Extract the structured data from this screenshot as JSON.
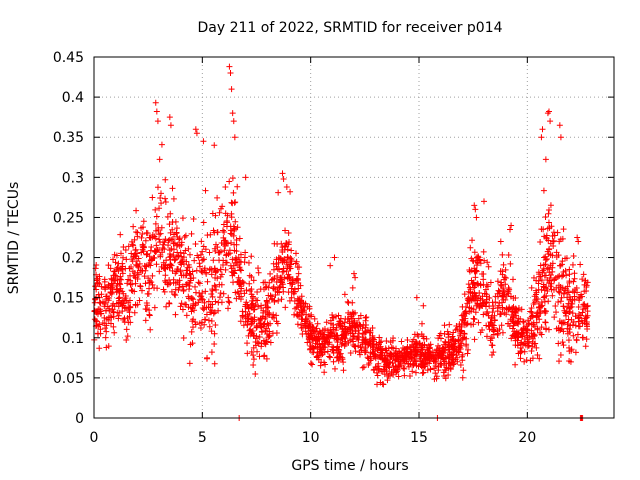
{
  "chart_data": {
    "type": "scatter",
    "title": "Day 211 of 2022, SRMTID for receiver p014",
    "xlabel": "GPS time / hours",
    "ylabel": "SRMTID / TECUs",
    "xlim": [
      0,
      24
    ],
    "ylim": [
      0,
      0.45
    ],
    "xticks": [
      0,
      5,
      10,
      15,
      20
    ],
    "yticks": [
      0,
      0.05,
      0.1,
      0.15,
      0.2,
      0.25,
      0.3,
      0.35,
      0.4,
      0.45
    ],
    "xtick_labels": [
      "0",
      "5",
      "10",
      "15",
      "20"
    ],
    "ytick_labels": [
      "0",
      "0.05",
      "0.1",
      "0.15",
      "0.2",
      "0.25",
      "0.3",
      "0.35",
      "0.4",
      "0.45"
    ],
    "grid": true,
    "marker": "+",
    "series": [
      {
        "name": "SRMTID",
        "color": "#ff0000",
        "trend": [
          [
            0.0,
            0.15
          ],
          [
            0.5,
            0.13
          ],
          [
            1.0,
            0.17
          ],
          [
            1.5,
            0.15
          ],
          [
            2.0,
            0.19
          ],
          [
            2.5,
            0.18
          ],
          [
            3.0,
            0.23
          ],
          [
            3.5,
            0.2
          ],
          [
            4.0,
            0.19
          ],
          [
            4.5,
            0.15
          ],
          [
            5.0,
            0.17
          ],
          [
            5.5,
            0.16
          ],
          [
            6.0,
            0.22
          ],
          [
            6.5,
            0.2
          ],
          [
            7.0,
            0.14
          ],
          [
            7.5,
            0.12
          ],
          [
            8.0,
            0.13
          ],
          [
            8.5,
            0.17
          ],
          [
            9.0,
            0.19
          ],
          [
            9.5,
            0.15
          ],
          [
            10.0,
            0.1
          ],
          [
            10.5,
            0.09
          ],
          [
            11.0,
            0.1
          ],
          [
            11.5,
            0.1
          ],
          [
            12.0,
            0.11
          ],
          [
            12.5,
            0.1
          ],
          [
            13.0,
            0.08
          ],
          [
            13.5,
            0.07
          ],
          [
            14.0,
            0.07
          ],
          [
            14.5,
            0.075
          ],
          [
            15.0,
            0.08
          ],
          [
            15.5,
            0.075
          ],
          [
            16.0,
            0.08
          ],
          [
            16.5,
            0.08
          ],
          [
            17.0,
            0.1
          ],
          [
            17.5,
            0.17
          ],
          [
            18.0,
            0.15
          ],
          [
            18.5,
            0.12
          ],
          [
            19.0,
            0.17
          ],
          [
            19.5,
            0.1
          ],
          [
            20.0,
            0.1
          ],
          [
            20.5,
            0.13
          ],
          [
            21.0,
            0.2
          ],
          [
            21.5,
            0.15
          ],
          [
            22.0,
            0.13
          ],
          [
            22.5,
            0.14
          ],
          [
            22.8,
            0.13
          ]
        ],
        "spread": [
          [
            0.0,
            0.04
          ],
          [
            2.0,
            0.05
          ],
          [
            3.0,
            0.07
          ],
          [
            4.0,
            0.06
          ],
          [
            6.0,
            0.08
          ],
          [
            7.0,
            0.05
          ],
          [
            8.5,
            0.05
          ],
          [
            10.0,
            0.025
          ],
          [
            12.0,
            0.03
          ],
          [
            14.0,
            0.02
          ],
          [
            16.0,
            0.02
          ],
          [
            17.5,
            0.05
          ],
          [
            19.0,
            0.04
          ],
          [
            20.0,
            0.025
          ],
          [
            21.0,
            0.07
          ],
          [
            22.8,
            0.04
          ]
        ],
        "point_count": 2600,
        "peaks": [
          [
            2.85,
            0.393
          ],
          [
            2.9,
            0.382
          ],
          [
            2.95,
            0.37
          ],
          [
            3.5,
            0.375
          ],
          [
            3.55,
            0.365
          ],
          [
            4.7,
            0.36
          ],
          [
            4.75,
            0.355
          ],
          [
            5.05,
            0.345
          ],
          [
            6.25,
            0.438
          ],
          [
            6.3,
            0.43
          ],
          [
            6.35,
            0.41
          ],
          [
            6.4,
            0.38
          ],
          [
            6.45,
            0.37
          ],
          [
            6.5,
            0.35
          ],
          [
            5.55,
            0.34
          ],
          [
            8.7,
            0.305
          ],
          [
            8.75,
            0.298
          ],
          [
            8.9,
            0.288
          ],
          [
            9.05,
            0.282
          ],
          [
            7.0,
            0.3
          ],
          [
            12.0,
            0.18
          ],
          [
            12.05,
            0.175
          ],
          [
            11.1,
            0.2
          ],
          [
            10.9,
            0.19
          ],
          [
            14.9,
            0.15
          ],
          [
            15.2,
            0.14
          ],
          [
            17.55,
            0.265
          ],
          [
            17.6,
            0.26
          ],
          [
            17.65,
            0.25
          ],
          [
            18.0,
            0.27
          ],
          [
            19.2,
            0.235
          ],
          [
            19.25,
            0.24
          ],
          [
            20.95,
            0.38
          ],
          [
            21.0,
            0.382
          ],
          [
            21.05,
            0.37
          ],
          [
            21.5,
            0.365
          ],
          [
            21.55,
            0.35
          ],
          [
            20.7,
            0.36
          ],
          [
            20.65,
            0.35
          ],
          [
            22.3,
            0.225
          ],
          [
            22.35,
            0.22
          ]
        ],
        "zero_points": [
          [
            6.7,
            0.0
          ],
          [
            15.85,
            0.0
          ],
          [
            22.45,
            0.0
          ],
          [
            22.5,
            0.0
          ],
          [
            22.55,
            0.0
          ]
        ]
      }
    ]
  }
}
